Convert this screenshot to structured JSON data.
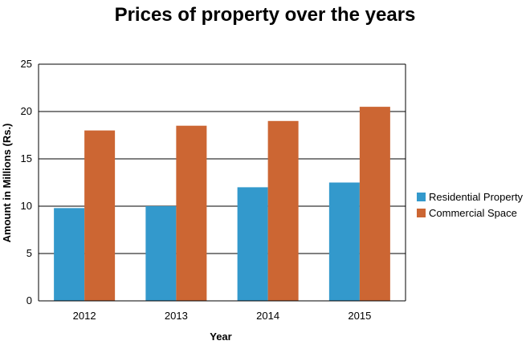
{
  "chart_data": {
    "type": "bar",
    "title": "Prices of property over the years",
    "xlabel": "Year",
    "ylabel": "Amount in Millions (Rs.)",
    "categories": [
      "2012",
      "2013",
      "2014",
      "2015"
    ],
    "series": [
      {
        "name": "Residential Property",
        "color": "#3399cc",
        "values": [
          9.8,
          10,
          12,
          12.5
        ]
      },
      {
        "name": "Commercial Space",
        "color": "#cc6633",
        "values": [
          18,
          18.5,
          19,
          20.5
        ]
      }
    ],
    "ylim": [
      0,
      25
    ],
    "yticks": [
      "0",
      "5",
      "10",
      "15",
      "20",
      "25"
    ],
    "grid": true,
    "legend_position": "right"
  }
}
